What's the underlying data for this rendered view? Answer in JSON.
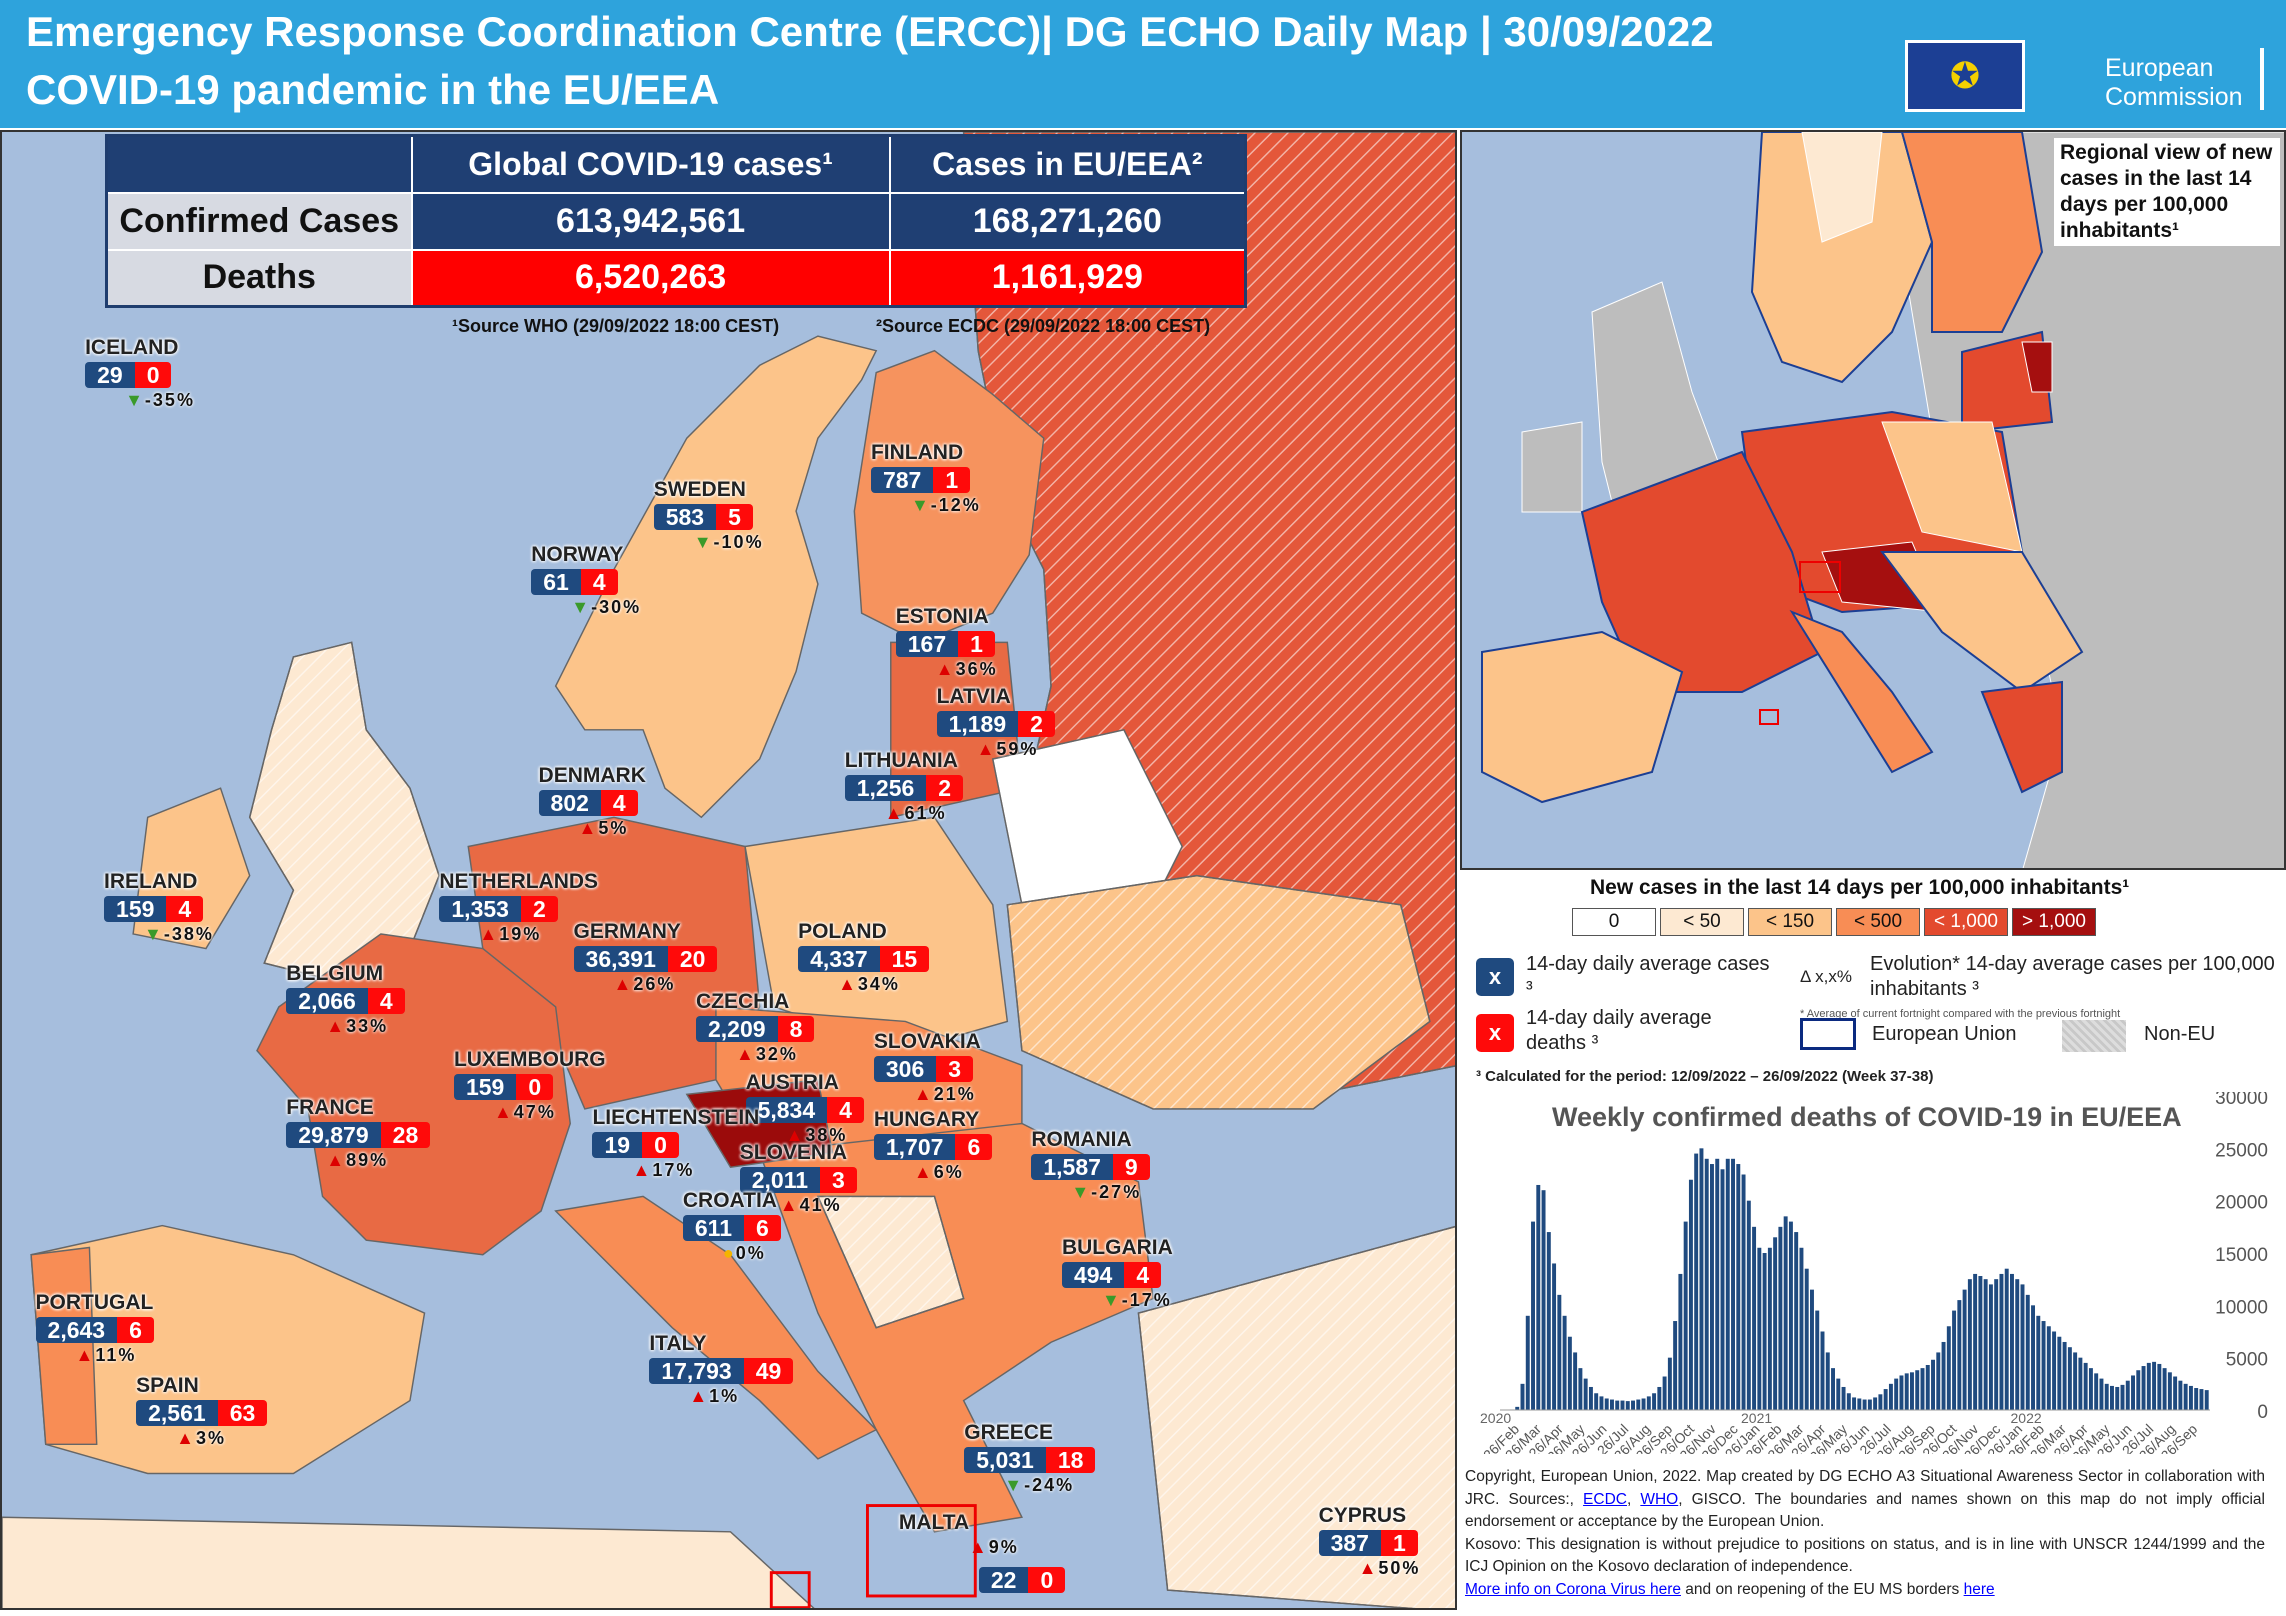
{
  "header": {
    "title_line1": "Emergency Response Coordination Centre (ERCC)| DG ECHO Daily Map  |  30/09/2022",
    "title_line2": "COVID-19 pandemic in the EU/EEA",
    "logo_text_1": "European",
    "logo_text_2": "Commission"
  },
  "stats": {
    "col_global": "Global COVID-19 cases¹",
    "col_eu": "Cases in EU/EEA²",
    "row_confirmed": "Confirmed Cases",
    "row_deaths": "Deaths",
    "global_confirmed": "613,942,561",
    "eu_confirmed": "168,271,260",
    "global_deaths": "6,520,263",
    "eu_deaths": "1,161,929",
    "source_who": "¹Source WHO (29/09/2022 18:00 CEST)",
    "source_ecdc": "²Source ECDC (29/09/2022 18:00 CEST)"
  },
  "countries": [
    {
      "name": "ICELAND",
      "cases": "29",
      "deaths": "0",
      "trend": "down",
      "evolution": "-35%"
    },
    {
      "name": "FINLAND",
      "cases": "787",
      "deaths": "1",
      "trend": "down",
      "evolution": "-12%"
    },
    {
      "name": "SWEDEN",
      "cases": "583",
      "deaths": "5",
      "trend": "down",
      "evolution": "-10%"
    },
    {
      "name": "NORWAY",
      "cases": "61",
      "deaths": "4",
      "trend": "down",
      "evolution": "-30%"
    },
    {
      "name": "ESTONIA",
      "cases": "167",
      "deaths": "1",
      "trend": "up",
      "evolution": "36%"
    },
    {
      "name": "LATVIA",
      "cases": "1,189",
      "deaths": "2",
      "trend": "up",
      "evolution": "59%"
    },
    {
      "name": "LITHUANIA",
      "cases": "1,256",
      "deaths": "2",
      "trend": "up",
      "evolution": "61%"
    },
    {
      "name": "DENMARK",
      "cases": "802",
      "deaths": "4",
      "trend": "up",
      "evolution": "5%"
    },
    {
      "name": "IRELAND",
      "cases": "159",
      "deaths": "4",
      "trend": "down",
      "evolution": "-38%"
    },
    {
      "name": "NETHERLANDS",
      "cases": "1,353",
      "deaths": "2",
      "trend": "up",
      "evolution": "19%"
    },
    {
      "name": "GERMANY",
      "cases": "36,391",
      "deaths": "20",
      "trend": "up",
      "evolution": "26%"
    },
    {
      "name": "POLAND",
      "cases": "4,337",
      "deaths": "15",
      "trend": "up",
      "evolution": "34%"
    },
    {
      "name": "BELGIUM",
      "cases": "2,066",
      "deaths": "4",
      "trend": "up",
      "evolution": "33%"
    },
    {
      "name": "CZECHIA",
      "cases": "2,209",
      "deaths": "8",
      "trend": "up",
      "evolution": "32%"
    },
    {
      "name": "SLOVAKIA",
      "cases": "306",
      "deaths": "3",
      "trend": "up",
      "evolution": "21%"
    },
    {
      "name": "LUXEMBOURG",
      "cases": "159",
      "deaths": "0",
      "trend": "up",
      "evolution": "47%"
    },
    {
      "name": "AUSTRIA",
      "cases": "5,834",
      "deaths": "4",
      "trend": "up",
      "evolution": "38%"
    },
    {
      "name": "FRANCE",
      "cases": "29,879",
      "deaths": "28",
      "trend": "up",
      "evolution": "89%"
    },
    {
      "name": "LIECHTENSTEIN",
      "cases": "19",
      "deaths": "0",
      "trend": "up",
      "evolution": "17%"
    },
    {
      "name": "HUNGARY",
      "cases": "1,707",
      "deaths": "6",
      "trend": "up",
      "evolution": "6%"
    },
    {
      "name": "ROMANIA",
      "cases": "1,587",
      "deaths": "9",
      "trend": "down",
      "evolution": "-27%"
    },
    {
      "name": "SLOVENIA",
      "cases": "2,011",
      "deaths": "3",
      "trend": "up",
      "evolution": "41%"
    },
    {
      "name": "CROATIA",
      "cases": "611",
      "deaths": "6",
      "trend": "neutral",
      "evolution": "0%"
    },
    {
      "name": "BULGARIA",
      "cases": "494",
      "deaths": "4",
      "trend": "down",
      "evolution": "-17%"
    },
    {
      "name": "PORTUGAL",
      "cases": "2,643",
      "deaths": "6",
      "trend": "up",
      "evolution": "11%"
    },
    {
      "name": "ITALY",
      "cases": "17,793",
      "deaths": "49",
      "trend": "up",
      "evolution": "1%"
    },
    {
      "name": "SPAIN",
      "cases": "2,561",
      "deaths": "63",
      "trend": "up",
      "evolution": "3%"
    },
    {
      "name": "GREECE",
      "cases": "5,031",
      "deaths": "18",
      "trend": "down",
      "evolution": "-24%"
    },
    {
      "name": "MALTA",
      "cases": "22",
      "deaths": "0",
      "trend": "up",
      "evolution": "9%"
    },
    {
      "name": "CYPRUS",
      "cases": "387",
      "deaths": "1",
      "trend": "up",
      "evolution": "50%"
    }
  ],
  "regional": {
    "title": "Regional view of new cases in the last 14 days per 100,000 inhabitants¹"
  },
  "legend": {
    "title": "New cases in the last 14 days per 100,000 inhabitants¹",
    "bins": [
      {
        "label": "0",
        "color": "#ffffff"
      },
      {
        "label": "< 50",
        "color": "#fde9d2"
      },
      {
        "label": "< 150",
        "color": "#fcc48a"
      },
      {
        "label": "< 500",
        "color": "#f88d55"
      },
      {
        "label": "< 1,000",
        "color": "#e34a2e"
      },
      {
        "label": "> 1,000",
        "color": "#a50f0f"
      }
    ],
    "cases_symbol": "x",
    "cases_label": "14-day daily average cases ³",
    "deaths_symbol": "x",
    "deaths_label": "14-day daily average deaths ³",
    "evolution_symbol": "Δ x,x%",
    "evolution_label": "Evolution* 14-day average cases per 100,000 inhabitants ³",
    "evolution_note": "* Average of current fortnight compared with the previous fortnight",
    "eu_label": "European Union",
    "noneu_label": "Non-EU",
    "period_note": "³ Calculated  for the period: 12/09/2022 – 26/09/2022 (Week 37-38)"
  },
  "chart_data": {
    "type": "bar",
    "title": "Weekly confirmed deaths of COVID-19 in EU/EEA",
    "ylim": [
      0,
      30000
    ],
    "yticks": [
      "30000",
      "25000",
      "20000",
      "15000",
      "10000",
      "5000",
      "0"
    ],
    "years": [
      "2020",
      "2021",
      "2022"
    ],
    "xticks": [
      "26/Feb",
      "26/Mar",
      "26/Apr",
      "26/May",
      "26/Jun",
      "26/Jul",
      "26/Aug",
      "26/Sep",
      "26/Oct",
      "26/Nov",
      "26/Dec",
      "26/Jan",
      "26/Feb",
      "26/Mar",
      "26/Apr",
      "26/May",
      "26/Jun",
      "26/Jul",
      "26/Aug",
      "26/Sep",
      "26/Oct",
      "26/Nov",
      "26/Dec",
      "26/Jan",
      "26/Feb",
      "26/Mar",
      "26/Apr",
      "26/May",
      "26/Jun",
      "26/Jul",
      "26/Aug",
      "26/Sep"
    ],
    "values": [
      50,
      300,
      2500,
      9000,
      18000,
      21500,
      21000,
      17000,
      14000,
      11000,
      9000,
      7000,
      5500,
      4000,
      3000,
      2200,
      1600,
      1300,
      1100,
      1000,
      900,
      900,
      850,
      900,
      1000,
      1100,
      1300,
      1600,
      2200,
      3200,
      5000,
      8500,
      13000,
      18000,
      22000,
      24500,
      25000,
      24000,
      23500,
      24000,
      23000,
      24000,
      24000,
      23500,
      22500,
      20000,
      17500,
      15500,
      15000,
      15500,
      16500,
      17500,
      18500,
      18000,
      17000,
      15500,
      13500,
      11500,
      9500,
      7500,
      5500,
      4000,
      3000,
      2200,
      1600,
      1200,
      1100,
      1000,
      1000,
      1200,
      1500,
      2000,
      2500,
      3000,
      3300,
      3500,
      3600,
      3800,
      4000,
      4300,
      4800,
      5500,
      6500,
      8000,
      9500,
      10500,
      11500,
      12500,
      13000,
      12800,
      12500,
      12000,
      12500,
      13000,
      13500,
      13000,
      12500,
      12000,
      11000,
      10000,
      9000,
      8500,
      8000,
      7500,
      7000,
      6500,
      6000,
      5500,
      5000,
      4500,
      4000,
      3500,
      3000,
      2500,
      2300,
      2200,
      2400,
      2800,
      3300,
      3800,
      4200,
      4500,
      4600,
      4400,
      4000,
      3600,
      3200,
      2800,
      2500,
      2300,
      2100,
      2000,
      1900
    ]
  },
  "footer": {
    "copyright_a": "Copyright, European Union, 2022. Map created by DG ECHO A3 Situational Awareness Sector in collaboration with JRC. Sources:,",
    "link_ecdc": "ECDC",
    "link_who": "WHO",
    "copyright_b": ", GISCO. The boundaries and names shown on this map do not imply official endorsement or acceptance by the European Union.",
    "kosovo": "Kosovo: This designation is without prejudice to positions on status, and is in line with UNSCR 1244/1999 and the ICJ Opinion on the Kosovo declaration of independence.",
    "link_more": "More info on Corona Virus here",
    "borders_text": " and on reopening of the EU MS borders ",
    "link_here": "here"
  }
}
